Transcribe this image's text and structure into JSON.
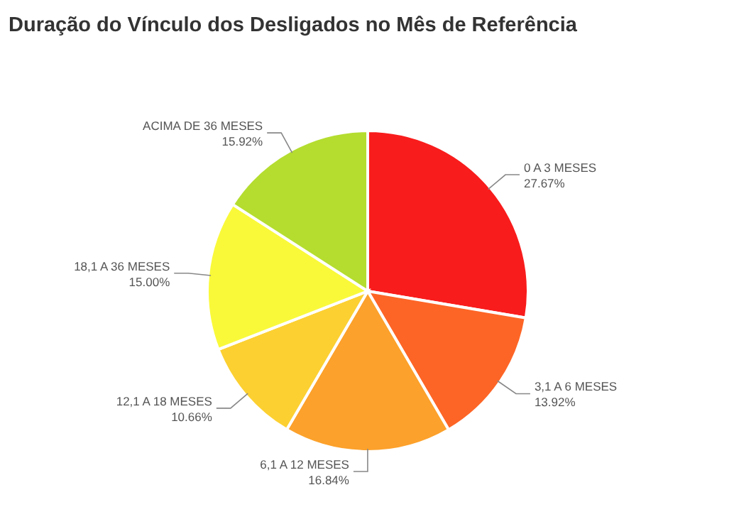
{
  "chart_data": {
    "type": "pie",
    "title": "Duração do Vínculo dos Desligados no Mês de Referência",
    "categories": [
      "0 A 3 MESES",
      "3,1 A 6 MESES",
      "6,1 A 12 MESES",
      "12,1 A 18 MESES",
      "18,1 A 36 MESES",
      "ACIMA DE 36 MESES"
    ],
    "values": [
      27.67,
      13.92,
      16.84,
      10.66,
      15.0,
      15.92
    ],
    "value_labels": [
      "27.67%",
      "13.92%",
      "16.84%",
      "10.66%",
      "15.00%",
      "15.92%"
    ],
    "colors": [
      "#f91c1c",
      "#fd6526",
      "#fca12b",
      "#fcd031",
      "#f9f93a",
      "#b4dd2f"
    ]
  }
}
